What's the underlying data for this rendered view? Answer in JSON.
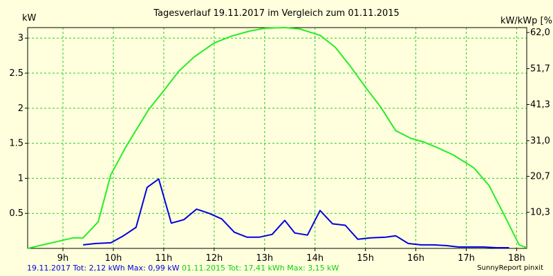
{
  "chart_data": {
    "type": "line",
    "title": "Tagesverlauf 19.11.2017 im Vergleich zum 01.11.2015",
    "ylabel": "kW",
    "ylabel_right": "kW/kWp [%]",
    "xlim": [
      8.3,
      18.2
    ],
    "ylim": [
      0,
      3.15
    ],
    "grid": true,
    "x_ticks": [
      9,
      10,
      11,
      12,
      13,
      14,
      15,
      16,
      17,
      18
    ],
    "x_tick_labels": [
      "9h",
      "10h",
      "11h",
      "12h",
      "13h",
      "14h",
      "15h",
      "16h",
      "17h",
      "18h"
    ],
    "y_ticks": [
      0.5,
      1,
      1.5,
      2,
      2.5,
      3
    ],
    "y_tick_labels": [
      "0.5",
      "1",
      "1.5",
      "2",
      "2.5",
      "3"
    ],
    "y2_ticks": [
      0.516,
      1.028,
      1.537,
      2.052,
      2.564,
      3.08
    ],
    "y2_tick_labels": [
      "10,3",
      "20,7",
      "31,0",
      "41,3",
      "51,7",
      "62,0"
    ],
    "series": [
      {
        "name": "19.11.2017",
        "color": "#0000dd",
        "x": [
          9.4,
          9.65,
          9.95,
          10.2,
          10.45,
          10.67,
          10.9,
          11.15,
          11.4,
          11.65,
          11.9,
          12.15,
          12.4,
          12.65,
          12.9,
          13.15,
          13.4,
          13.6,
          13.85,
          14.1,
          14.35,
          14.6,
          14.85,
          15.1,
          15.4,
          15.6,
          15.85,
          16.1,
          16.35,
          16.6,
          16.85,
          17.1,
          17.35,
          17.6,
          17.85
        ],
        "y": [
          0.05,
          0.07,
          0.08,
          0.18,
          0.3,
          0.87,
          0.99,
          0.36,
          0.41,
          0.56,
          0.5,
          0.42,
          0.23,
          0.16,
          0.16,
          0.2,
          0.4,
          0.22,
          0.19,
          0.54,
          0.35,
          0.33,
          0.13,
          0.15,
          0.16,
          0.18,
          0.07,
          0.05,
          0.05,
          0.04,
          0.02,
          0.02,
          0.02,
          0.01,
          0.01
        ]
      },
      {
        "name": "01.11.2015",
        "color": "#22ee22",
        "x": [
          8.3,
          8.6,
          8.9,
          9.2,
          9.4,
          9.7,
          9.95,
          10.25,
          10.7,
          11.0,
          11.3,
          11.6,
          12.0,
          12.35,
          12.7,
          13.0,
          13.4,
          13.7,
          14.1,
          14.4,
          14.7,
          15.0,
          15.3,
          15.6,
          15.9,
          16.15,
          16.45,
          16.75,
          16.95,
          17.15,
          17.45,
          17.75,
          18.05,
          18.2
        ],
        "y": [
          0,
          0.05,
          0.1,
          0.15,
          0.15,
          0.38,
          1.05,
          1.45,
          1.98,
          2.25,
          2.53,
          2.73,
          2.93,
          3.03,
          3.1,
          3.14,
          3.15,
          3.13,
          3.04,
          2.87,
          2.6,
          2.3,
          2.02,
          1.68,
          1.57,
          1.52,
          1.43,
          1.33,
          1.24,
          1.15,
          0.9,
          0.48,
          0.05,
          0.01
        ]
      }
    ],
    "legend": [
      {
        "text": "19.11.2017 Tot: 2,12 kWh Max: 0,99 kW",
        "color": "#0000dd"
      },
      {
        "text": "01.11.2015 Tot: 17,41 kWh Max: 3,15 kW",
        "color": "#11cc11"
      }
    ],
    "credit": "SunnyReport pinxit",
    "colors": {
      "background": "#ffffdd",
      "grid": "#22cc22",
      "axis": "#000000"
    }
  }
}
